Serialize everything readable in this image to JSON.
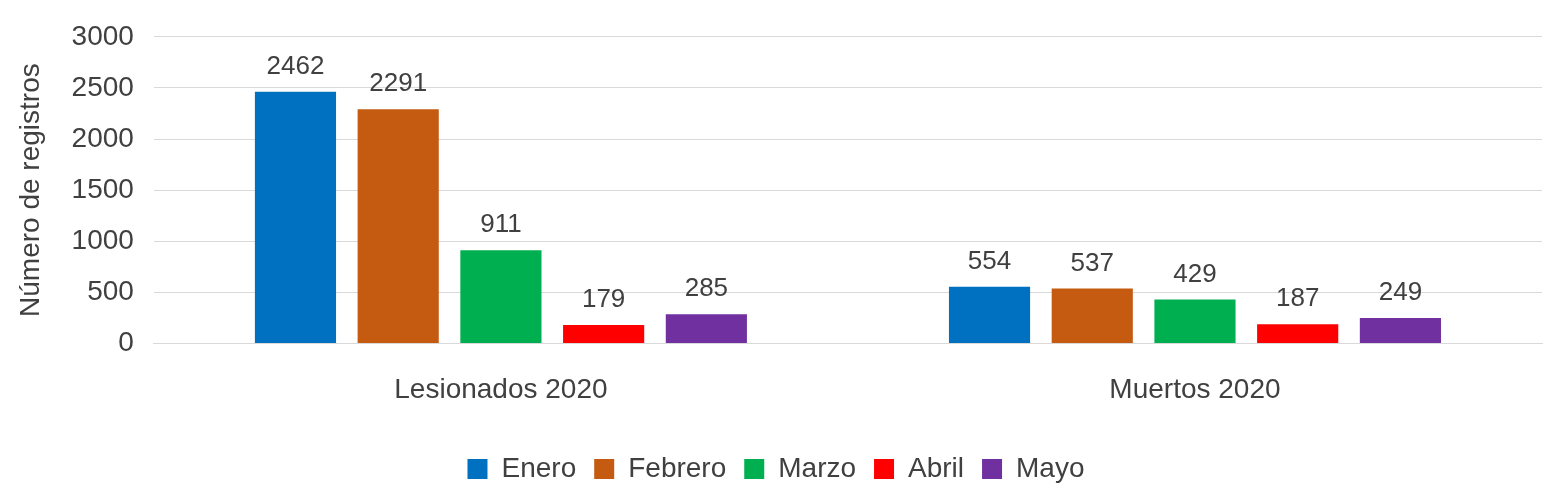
{
  "chart_data": {
    "type": "bar",
    "ylabel": "Número de registros",
    "categories": [
      "Lesionados 2020",
      "Muertos 2020"
    ],
    "series": [
      {
        "name": "Enero",
        "color": "#0070c0",
        "values": [
          2462,
          554
        ]
      },
      {
        "name": "Febrero",
        "color": "#c55a11",
        "values": [
          2291,
          537
        ]
      },
      {
        "name": "Marzo",
        "color": "#00b050",
        "values": [
          911,
          429
        ]
      },
      {
        "name": "Abril",
        "color": "#ff0000",
        "values": [
          179,
          187
        ]
      },
      {
        "name": "Mayo",
        "color": "#7030a0",
        "values": [
          285,
          249
        ]
      }
    ],
    "ylim": [
      0,
      3000
    ],
    "yticks": [
      0,
      500,
      1000,
      1500,
      2000,
      2500,
      3000
    ],
    "grid": "y",
    "legend": "bottom",
    "data_labels": true
  }
}
